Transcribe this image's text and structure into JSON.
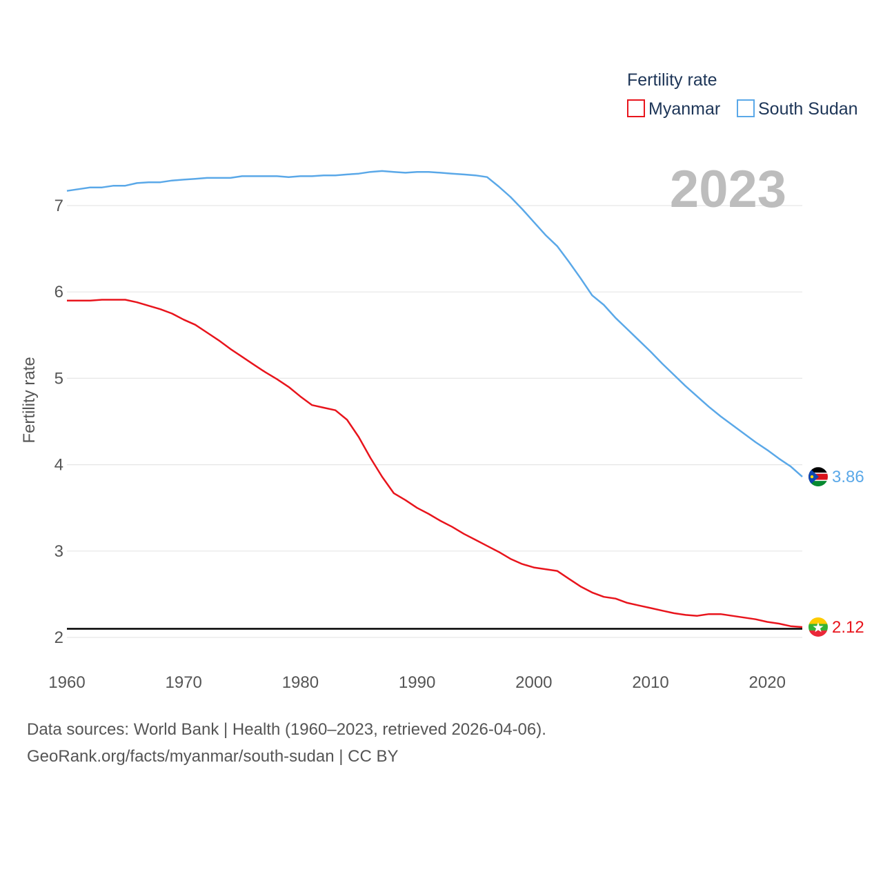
{
  "colors": {
    "myanmar": "#e8141c",
    "south_sudan": "#5aa8e8",
    "grid": "#e6e6e6",
    "reference_line": "#000000",
    "year_watermark": "#bdbdbd"
  },
  "chart_data": {
    "type": "line",
    "title": "",
    "xlabel": "",
    "ylabel": "Fertility rate",
    "xlim": [
      1960,
      2023
    ],
    "ylim": [
      2,
      7.4
    ],
    "x_ticks": [
      1960,
      1970,
      1980,
      1990,
      2000,
      2010,
      2020
    ],
    "y_ticks": [
      2,
      3,
      4,
      5,
      6,
      7
    ],
    "grid": true,
    "legend": {
      "title": "Fertility rate",
      "position": "top-right"
    },
    "year_label": "2023",
    "reference_line": {
      "y": 2.1
    },
    "x": [
      1960,
      1961,
      1962,
      1963,
      1964,
      1965,
      1966,
      1967,
      1968,
      1969,
      1970,
      1971,
      1972,
      1973,
      1974,
      1975,
      1976,
      1977,
      1978,
      1979,
      1980,
      1981,
      1982,
      1983,
      1984,
      1985,
      1986,
      1987,
      1988,
      1989,
      1990,
      1991,
      1992,
      1993,
      1994,
      1995,
      1996,
      1997,
      1998,
      1999,
      2000,
      2001,
      2002,
      2003,
      2004,
      2005,
      2006,
      2007,
      2008,
      2009,
      2010,
      2011,
      2012,
      2013,
      2014,
      2015,
      2016,
      2017,
      2018,
      2019,
      2020,
      2021,
      2022,
      2023
    ],
    "series": [
      {
        "name": "Myanmar",
        "color": "#e8141c",
        "icon": "myanmar-flag-icon",
        "end_label": "2.12",
        "values": [
          5.9,
          5.9,
          5.9,
          5.91,
          5.91,
          5.91,
          5.88,
          5.84,
          5.8,
          5.75,
          5.68,
          5.62,
          5.53,
          5.44,
          5.34,
          5.25,
          5.16,
          5.07,
          4.99,
          4.9,
          4.79,
          4.69,
          4.66,
          4.63,
          4.52,
          4.32,
          4.08,
          3.86,
          3.67,
          3.59,
          3.5,
          3.43,
          3.35,
          3.28,
          3.2,
          3.13,
          3.06,
          2.99,
          2.91,
          2.85,
          2.81,
          2.79,
          2.77,
          2.68,
          2.59,
          2.52,
          2.47,
          2.45,
          2.4,
          2.37,
          2.34,
          2.31,
          2.28,
          2.26,
          2.25,
          2.27,
          2.27,
          2.25,
          2.23,
          2.21,
          2.18,
          2.16,
          2.13,
          2.12
        ]
      },
      {
        "name": "South Sudan",
        "color": "#5aa8e8",
        "icon": "south-sudan-flag-icon",
        "end_label": "3.86",
        "values": [
          7.17,
          7.19,
          7.21,
          7.21,
          7.23,
          7.23,
          7.26,
          7.27,
          7.27,
          7.29,
          7.3,
          7.31,
          7.32,
          7.32,
          7.32,
          7.34,
          7.34,
          7.34,
          7.34,
          7.33,
          7.34,
          7.34,
          7.35,
          7.35,
          7.36,
          7.37,
          7.39,
          7.4,
          7.39,
          7.38,
          7.39,
          7.39,
          7.38,
          7.37,
          7.36,
          7.35,
          7.33,
          7.22,
          7.1,
          6.96,
          6.81,
          6.66,
          6.53,
          6.35,
          6.16,
          5.96,
          5.85,
          5.7,
          5.57,
          5.44,
          5.31,
          5.17,
          5.04,
          4.91,
          4.79,
          4.67,
          4.56,
          4.46,
          4.36,
          4.26,
          4.17,
          4.07,
          3.98,
          3.86
        ]
      }
    ]
  },
  "footer": {
    "sources": "Data sources: World Bank | Health (1960–2023, retrieved 2026-04-06).",
    "credit": "GeoRank.org/facts/myanmar/south-sudan | CC BY"
  }
}
